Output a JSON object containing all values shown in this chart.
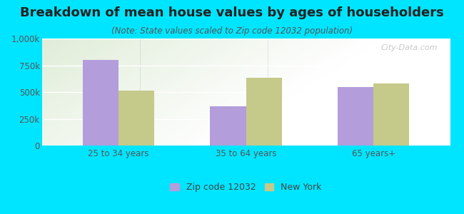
{
  "title": "Breakdown of mean house values by ages of householders",
  "subtitle": "(Note: State values scaled to Zip code 12032 population)",
  "categories": [
    "25 to 34 years",
    "35 to 64 years",
    "65 years+"
  ],
  "zip_values": [
    800000,
    370000,
    545000
  ],
  "ny_values": [
    515000,
    635000,
    578000
  ],
  "zip_color": "#b39ddb",
  "ny_color": "#c5c98a",
  "background_outer": "#00e5ff",
  "ylim": [
    0,
    1000000
  ],
  "yticks": [
    0,
    250000,
    500000,
    750000,
    1000000
  ],
  "ytick_labels": [
    "0",
    "250k",
    "500k",
    "750k",
    "1,000k"
  ],
  "legend_labels": [
    "Zip code 12032",
    "New York"
  ],
  "watermark": "City-Data.com",
  "title_fontsize": 13,
  "subtitle_fontsize": 8.5,
  "tick_fontsize": 8.5,
  "legend_fontsize": 9
}
